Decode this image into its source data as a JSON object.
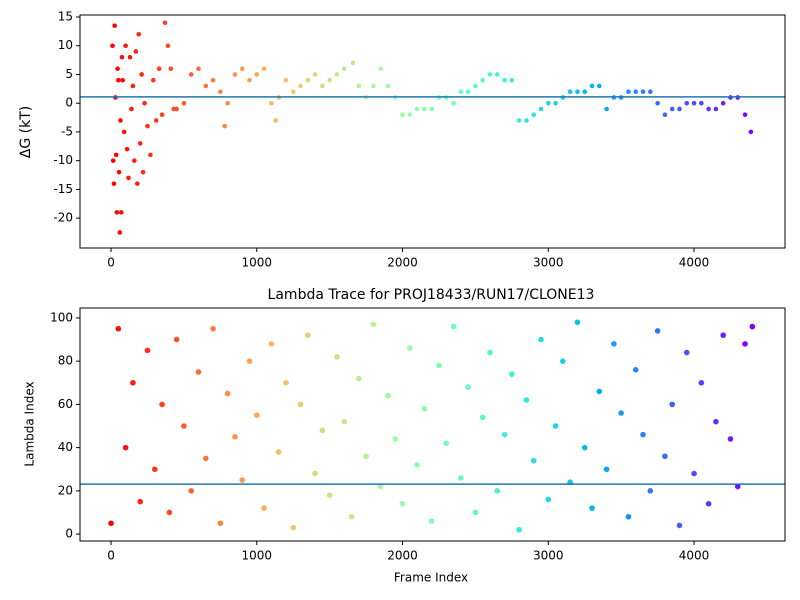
{
  "chart_data": [
    {
      "type": "scatter",
      "ylabel": "ΔG (kT)",
      "colormap": "rainbow_r",
      "xlim": [
        -213,
        4624
      ],
      "xticks": [
        0,
        1000,
        2000,
        3000,
        4000
      ],
      "ylim": [
        -25.2,
        15.35
      ],
      "yticks": [
        -20,
        -15,
        -10,
        -5,
        0,
        5,
        10,
        15
      ],
      "hline": 1.1,
      "hline_color": "#1f77b4",
      "x": [
        10,
        15,
        20,
        25,
        30,
        35,
        40,
        45,
        50,
        55,
        60,
        65,
        70,
        75,
        80,
        90,
        100,
        110,
        120,
        130,
        140,
        150,
        160,
        170,
        180,
        190,
        200,
        210,
        220,
        230,
        250,
        270,
        290,
        310,
        330,
        350,
        370,
        390,
        410,
        430,
        450,
        500,
        550,
        600,
        650,
        700,
        750,
        780,
        800,
        850,
        900,
        950,
        1000,
        1050,
        1100,
        1130,
        1150,
        1200,
        1250,
        1300,
        1350,
        1400,
        1450,
        1500,
        1550,
        1600,
        1660,
        1700,
        1750,
        1800,
        1850,
        1900,
        1950,
        2000,
        2050,
        2100,
        2150,
        2200,
        2250,
        2300,
        2350,
        2400,
        2450,
        2500,
        2550,
        2600,
        2650,
        2700,
        2750,
        2800,
        2850,
        2900,
        2950,
        3000,
        3050,
        3100,
        3150,
        3200,
        3250,
        3300,
        3350,
        3400,
        3450,
        3500,
        3550,
        3600,
        3650,
        3700,
        3750,
        3800,
        3850,
        3900,
        3950,
        4000,
        4050,
        4100,
        4150,
        4200,
        4250,
        4300,
        4350,
        4390
      ],
      "values": [
        10,
        -10,
        -14,
        13.5,
        1,
        -9,
        -19,
        6,
        4,
        -12,
        -22.5,
        -3,
        -19,
        8,
        4,
        -5,
        10,
        -8,
        -13,
        8,
        -1,
        3,
        -10,
        9,
        -14,
        12,
        -7,
        5,
        -12,
        0,
        -4,
        -9,
        4,
        -3,
        6,
        -2,
        14,
        10,
        6,
        -1,
        -1,
        0,
        5,
        6,
        3,
        4,
        2,
        -4,
        0,
        5,
        6,
        4,
        5,
        6,
        0,
        -3,
        1,
        4,
        2,
        3,
        4,
        5,
        3,
        4,
        5,
        6,
        7,
        3,
        1,
        3,
        6,
        3,
        1,
        -2,
        -2,
        -1,
        -1,
        -1,
        1,
        1,
        0,
        2,
        2,
        3,
        4,
        5,
        5,
        4,
        4,
        -3,
        -3,
        -2,
        -1,
        0,
        0,
        1,
        2,
        2,
        2,
        3,
        3,
        -1,
        1,
        1,
        2,
        2,
        2,
        2,
        0,
        -2,
        -1,
        -1,
        0,
        0,
        0,
        -1,
        -1,
        0,
        1,
        1,
        -2,
        -5
      ]
    },
    {
      "type": "scatter",
      "title": "Lambda Trace for PROJ18433/RUN17/CLONE13",
      "xlabel": "Frame Index",
      "ylabel": "Lambda Index",
      "colormap": "rainbow_r",
      "xlim": [
        -213,
        4624
      ],
      "xticks": [
        0,
        1000,
        2000,
        3000,
        4000
      ],
      "ylim": [
        -3.2,
        104.6
      ],
      "yticks": [
        0,
        20,
        40,
        60,
        80,
        100
      ],
      "hline": 23.1,
      "hline_color": "#1f77b4",
      "x": [
        0,
        50,
        100,
        150,
        200,
        250,
        300,
        350,
        400,
        450,
        500,
        550,
        600,
        650,
        700,
        750,
        800,
        850,
        900,
        950,
        1000,
        1050,
        1100,
        1150,
        1200,
        1250,
        1300,
        1350,
        1400,
        1450,
        1500,
        1550,
        1600,
        1650,
        1700,
        1750,
        1800,
        1850,
        1900,
        1950,
        2000,
        2050,
        2100,
        2150,
        2200,
        2250,
        2300,
        2350,
        2400,
        2450,
        2500,
        2550,
        2600,
        2650,
        2700,
        2750,
        2800,
        2850,
        2900,
        2950,
        3000,
        3050,
        3100,
        3150,
        3200,
        3250,
        3300,
        3350,
        3400,
        3450,
        3500,
        3550,
        3600,
        3650,
        3700,
        3750,
        3800,
        3850,
        3900,
        3950,
        4000,
        4050,
        4100,
        4150,
        4200,
        4250,
        4300,
        4350,
        4400
      ],
      "values": [
        5,
        95,
        40,
        70,
        15,
        85,
        30,
        60,
        10,
        90,
        50,
        20,
        75,
        35,
        95,
        5,
        65,
        45,
        25,
        80,
        55,
        12,
        88,
        38,
        70,
        3,
        60,
        92,
        28,
        48,
        18,
        82,
        52,
        8,
        72,
        36,
        97,
        22,
        64,
        44,
        14,
        86,
        32,
        58,
        6,
        78,
        42,
        96,
        26,
        68,
        10,
        54,
        84,
        20,
        46,
        74,
        2,
        62,
        34,
        90,
        16,
        50,
        80,
        24,
        98,
        40,
        12,
        66,
        30,
        88,
        56,
        8,
        76,
        46,
        20,
        94,
        36,
        60,
        4,
        84,
        28,
        70,
        14,
        52,
        92,
        44,
        22,
        88,
        96
      ]
    }
  ]
}
